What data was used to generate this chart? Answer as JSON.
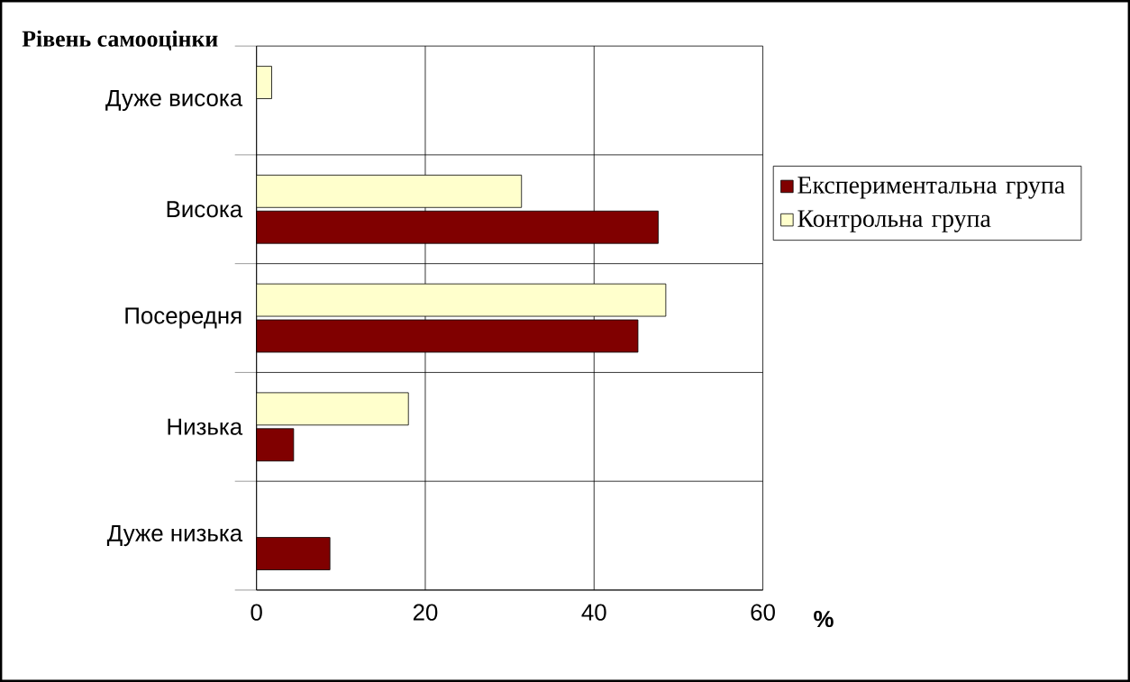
{
  "chart_data": {
    "type": "bar",
    "orientation": "horizontal",
    "ylabel": "Рівень самооцінки",
    "xlabel": "%",
    "categories": [
      "Дуже висока",
      "Висока",
      "Посередня",
      "Низька",
      "Дуже низька"
    ],
    "series": [
      {
        "name": "Експериментальна група",
        "color": "#800000",
        "values": [
          null,
          47.6,
          45.2,
          4.4,
          8.7
        ]
      },
      {
        "name": "Контрольна група",
        "color": "#ffffcc",
        "values": [
          1.8,
          31.4,
          48.5,
          18.0,
          null
        ]
      }
    ],
    "xlim": [
      0,
      60
    ],
    "xticks": [
      0,
      20,
      40,
      60
    ],
    "grid": true,
    "legend": "right"
  }
}
